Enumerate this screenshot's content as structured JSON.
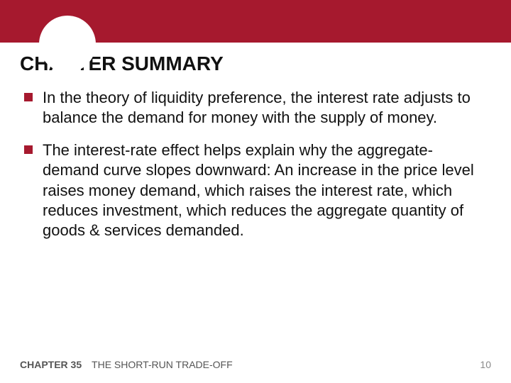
{
  "colors": {
    "banner_red": "#a6192e",
    "banner_light": "#e4b8c1",
    "background": "#ffffff",
    "text": "#111111",
    "footer_text": "#555555",
    "page_number": "#8a8a8a",
    "bullet_marker": "#a6192e"
  },
  "typography": {
    "title_fontsize": 28,
    "body_fontsize": 22,
    "footer_fontsize": 14,
    "font_family": "Arial"
  },
  "title": "CHAPTER SUMMARY",
  "bullets": [
    "In the theory of liquidity preference, the interest rate adjusts to balance the demand for money with the supply of money.",
    "The interest-rate effect helps explain why the aggregate-demand curve slopes downward: An increase in the price level raises money demand, which raises the interest rate, which reduces investment, which reduces the aggregate quantity of goods & services demanded."
  ],
  "footer": {
    "chapter_label": "CHAPTER 35",
    "chapter_title": "THE SHORT-RUN TRADE-OFF",
    "page_number": "10"
  }
}
